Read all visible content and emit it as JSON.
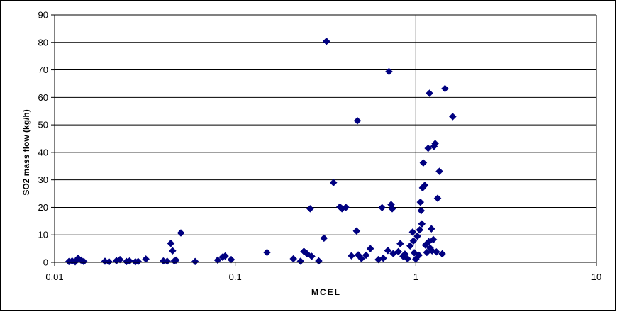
{
  "chart_data": {
    "type": "scatter",
    "title": "",
    "xlabel": "MCEL",
    "ylabel": "SO2 mass flow (kg/h)",
    "x_scale": "log",
    "xlim": [
      0.01,
      10
    ],
    "ylim": [
      0,
      90
    ],
    "x_ticks": [
      "0.01",
      "0.1",
      "1",
      "10"
    ],
    "y_ticks": [
      "0",
      "10",
      "20",
      "30",
      "40",
      "50",
      "60",
      "70",
      "80",
      "90"
    ],
    "grid": "horizontal",
    "legend": "none",
    "marker": "diamond",
    "marker_color": "#000080",
    "points": [
      [
        0.012,
        0.3
      ],
      [
        0.0125,
        0.5
      ],
      [
        0.013,
        0.2
      ],
      [
        0.0135,
        1.5
      ],
      [
        0.014,
        0.8
      ],
      [
        0.0145,
        0.3
      ],
      [
        0.019,
        0.4
      ],
      [
        0.02,
        0.2
      ],
      [
        0.022,
        0.6
      ],
      [
        0.023,
        1.0
      ],
      [
        0.025,
        0.3
      ],
      [
        0.026,
        0.5
      ],
      [
        0.028,
        0.2
      ],
      [
        0.029,
        0.3
      ],
      [
        0.032,
        1.2
      ],
      [
        0.04,
        0.5
      ],
      [
        0.042,
        0.4
      ],
      [
        0.044,
        6.9
      ],
      [
        0.045,
        4.2
      ],
      [
        0.046,
        0.5
      ],
      [
        0.047,
        0.8
      ],
      [
        0.05,
        10.7
      ],
      [
        0.06,
        0.3
      ],
      [
        0.08,
        0.8
      ],
      [
        0.085,
        1.9
      ],
      [
        0.088,
        2.3
      ],
      [
        0.095,
        1.0
      ],
      [
        0.15,
        3.6
      ],
      [
        0.21,
        1.3
      ],
      [
        0.23,
        0.4
      ],
      [
        0.24,
        4.0
      ],
      [
        0.25,
        3.1
      ],
      [
        0.26,
        19.5
      ],
      [
        0.265,
        2.2
      ],
      [
        0.29,
        0.5
      ],
      [
        0.31,
        8.8
      ],
      [
        0.32,
        80.4
      ],
      [
        0.35,
        29.0
      ],
      [
        0.38,
        20.2
      ],
      [
        0.39,
        19.5
      ],
      [
        0.41,
        20.0
      ],
      [
        0.44,
        2.4
      ],
      [
        0.47,
        11.4
      ],
      [
        0.475,
        51.5
      ],
      [
        0.48,
        2.7
      ],
      [
        0.5,
        1.4
      ],
      [
        0.53,
        2.6
      ],
      [
        0.56,
        5.0
      ],
      [
        0.62,
        1.0
      ],
      [
        0.65,
        19.9
      ],
      [
        0.66,
        1.5
      ],
      [
        0.7,
        4.3
      ],
      [
        0.71,
        69.4
      ],
      [
        0.73,
        21.0
      ],
      [
        0.74,
        19.5
      ],
      [
        0.75,
        3.2
      ],
      [
        0.8,
        3.9
      ],
      [
        0.82,
        6.8
      ],
      [
        0.85,
        2.2
      ],
      [
        0.87,
        3.0
      ],
      [
        0.9,
        1.3
      ],
      [
        0.93,
        6.0
      ],
      [
        0.96,
        11.0
      ],
      [
        0.97,
        7.8
      ],
      [
        0.98,
        3.5
      ],
      [
        1.0,
        1.2
      ],
      [
        1.02,
        9.5
      ],
      [
        1.04,
        2.6
      ],
      [
        1.05,
        11.8
      ],
      [
        1.06,
        21.9
      ],
      [
        1.07,
        18.8
      ],
      [
        1.08,
        14.0
      ],
      [
        1.09,
        27.1
      ],
      [
        1.1,
        36.2
      ],
      [
        1.12,
        28.0
      ],
      [
        1.13,
        6.3
      ],
      [
        1.15,
        3.6
      ],
      [
        1.17,
        41.5
      ],
      [
        1.18,
        7.5
      ],
      [
        1.19,
        61.5
      ],
      [
        1.2,
        5.2
      ],
      [
        1.22,
        12.2
      ],
      [
        1.23,
        4.2
      ],
      [
        1.25,
        8.3
      ],
      [
        1.26,
        42.2
      ],
      [
        1.28,
        43.2
      ],
      [
        1.3,
        3.8
      ],
      [
        1.32,
        23.3
      ],
      [
        1.35,
        33.1
      ],
      [
        1.4,
        3.1
      ],
      [
        1.45,
        63.2
      ],
      [
        1.6,
        53.0
      ]
    ]
  }
}
